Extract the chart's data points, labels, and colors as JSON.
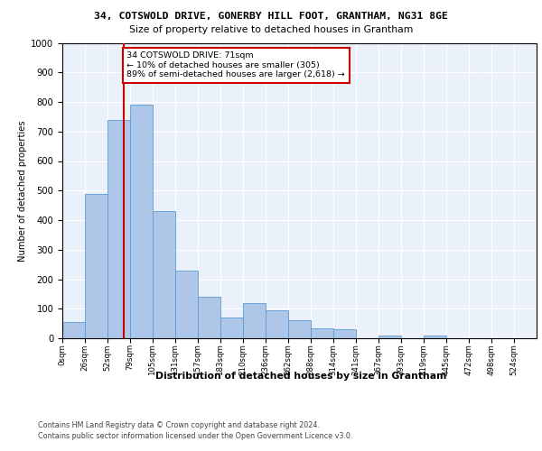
{
  "title": "34, COTSWOLD DRIVE, GONERBY HILL FOOT, GRANTHAM, NG31 8GE",
  "subtitle": "Size of property relative to detached houses in Grantham",
  "xlabel": "Distribution of detached houses by size in Grantham",
  "ylabel": "Number of detached properties",
  "bin_labels": [
    "0sqm",
    "26sqm",
    "52sqm",
    "79sqm",
    "105sqm",
    "131sqm",
    "157sqm",
    "183sqm",
    "210sqm",
    "236sqm",
    "262sqm",
    "288sqm",
    "314sqm",
    "341sqm",
    "367sqm",
    "393sqm",
    "419sqm",
    "445sqm",
    "472sqm",
    "498sqm",
    "524sqm"
  ],
  "bar_values": [
    55,
    490,
    740,
    790,
    430,
    230,
    140,
    70,
    120,
    95,
    60,
    35,
    30,
    0,
    10,
    0,
    10,
    0,
    0,
    0,
    0
  ],
  "bar_color": "#aec6e8",
  "bar_edge_color": "#5b9bd5",
  "vline_color": "#cc0000",
  "annotation_text": "34 COTSWOLD DRIVE: 71sqm\n← 10% of detached houses are smaller (305)\n89% of semi-detached houses are larger (2,618) →",
  "annotation_box_color": "#ffffff",
  "annotation_border_color": "#cc0000",
  "ylim": [
    0,
    1000
  ],
  "yticks": [
    0,
    100,
    200,
    300,
    400,
    500,
    600,
    700,
    800,
    900,
    1000
  ],
  "footer1": "Contains HM Land Registry data © Crown copyright and database right 2024.",
  "footer2": "Contains public sector information licensed under the Open Government Licence v3.0.",
  "bg_color": "#eaf1fb",
  "fig_bg_color": "#ffffff",
  "bin_starts": [
    0,
    26,
    52,
    79,
    105,
    131,
    157,
    183,
    210,
    236,
    262,
    288,
    314,
    341,
    367,
    393,
    419,
    445,
    472,
    498,
    524
  ],
  "vline_val": 71
}
